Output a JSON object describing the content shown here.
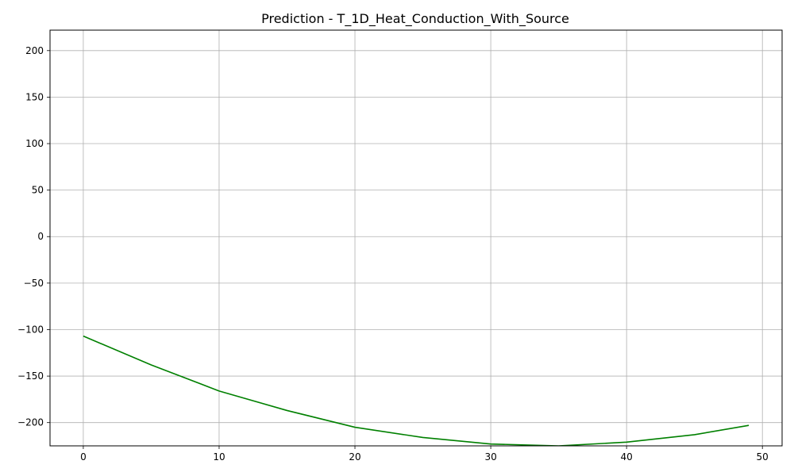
{
  "chart_data": {
    "type": "line",
    "title": "Prediction - T_1D_Heat_Conduction_With_Source",
    "xlabel": "",
    "ylabel": "",
    "xlim": [
      -2.45,
      51.45
    ],
    "ylim": [
      -225,
      222
    ],
    "grid": true,
    "x_ticks": [
      0,
      10,
      20,
      30,
      40,
      50
    ],
    "x_tick_labels": [
      "0",
      "10",
      "20",
      "30",
      "40",
      "50"
    ],
    "y_ticks": [
      200,
      150,
      100,
      50,
      0,
      -50,
      -100,
      -150,
      -200
    ],
    "y_tick_labels": [
      "200",
      "150",
      "100",
      "50",
      "0",
      "−50",
      "−100",
      "−150",
      "−200"
    ],
    "series": [
      {
        "name": "",
        "color": "#008000",
        "x": [
          0,
          5,
          10,
          15,
          20,
          25,
          30,
          35,
          40,
          45,
          49
        ],
        "y": [
          -107,
          -138,
          -166,
          -187,
          -205,
          -216,
          -223,
          -225,
          -221,
          -213,
          -203
        ]
      }
    ]
  }
}
